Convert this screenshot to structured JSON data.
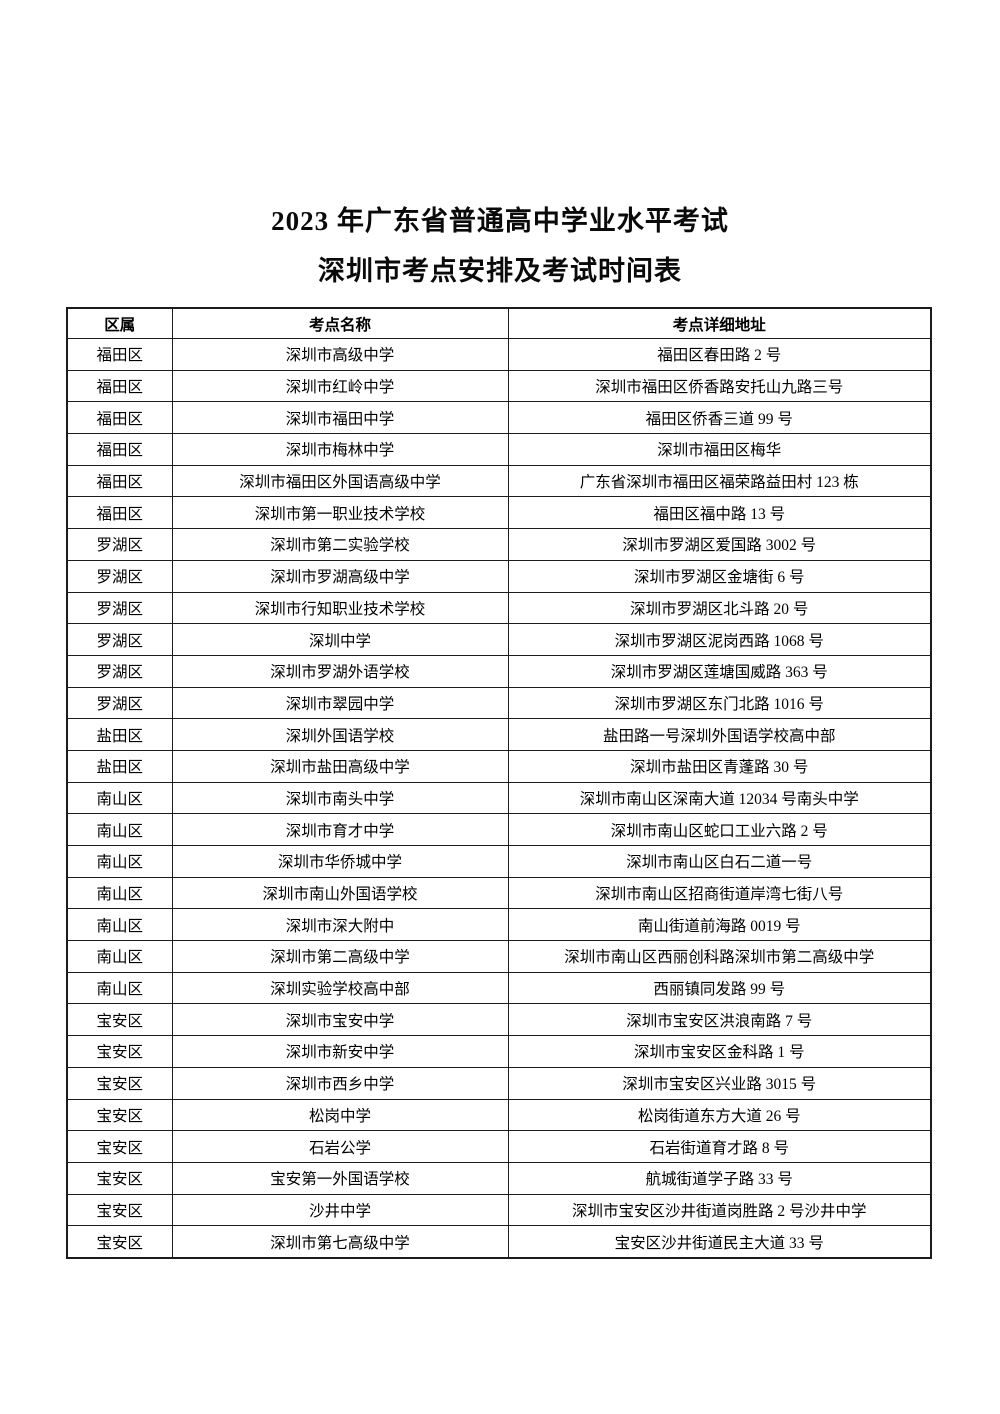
{
  "page": {
    "title_line1": "2023 年广东省普通高中学业水平考试",
    "title_line2": "深圳市考点安排及考试时间表"
  },
  "table": {
    "headers": [
      "区属",
      "考点名称",
      "考点详细地址"
    ],
    "rows": [
      [
        "福田区",
        "深圳市高级中学",
        "福田区春田路 2 号"
      ],
      [
        "福田区",
        "深圳市红岭中学",
        "深圳市福田区侨香路安托山九路三号"
      ],
      [
        "福田区",
        "深圳市福田中学",
        "福田区侨香三道 99 号"
      ],
      [
        "福田区",
        "深圳市梅林中学",
        "深圳市福田区梅华"
      ],
      [
        "福田区",
        "深圳市福田区外国语高级中学",
        "广东省深圳市福田区福荣路益田村 123 栋"
      ],
      [
        "福田区",
        "深圳市第一职业技术学校",
        "福田区福中路 13 号"
      ],
      [
        "罗湖区",
        "深圳市第二实验学校",
        "深圳市罗湖区爱国路 3002 号"
      ],
      [
        "罗湖区",
        "深圳市罗湖高级中学",
        "深圳市罗湖区金塘街 6 号"
      ],
      [
        "罗湖区",
        "深圳市行知职业技术学校",
        "深圳市罗湖区北斗路 20 号"
      ],
      [
        "罗湖区",
        "深圳中学",
        "深圳市罗湖区泥岗西路 1068 号"
      ],
      [
        "罗湖区",
        "深圳市罗湖外语学校",
        "深圳市罗湖区莲塘国威路 363 号"
      ],
      [
        "罗湖区",
        "深圳市翠园中学",
        "深圳市罗湖区东门北路 1016 号"
      ],
      [
        "盐田区",
        "深圳外国语学校",
        "盐田路一号深圳外国语学校高中部"
      ],
      [
        "盐田区",
        "深圳市盐田高级中学",
        "深圳市盐田区青蓬路 30 号"
      ],
      [
        "南山区",
        "深圳市南头中学",
        "深圳市南山区深南大道 12034 号南头中学"
      ],
      [
        "南山区",
        "深圳市育才中学",
        "深圳市南山区蛇口工业六路 2 号"
      ],
      [
        "南山区",
        "深圳市华侨城中学",
        "深圳市南山区白石二道一号"
      ],
      [
        "南山区",
        "深圳市南山外国语学校",
        "深圳市南山区招商街道岸湾七街八号"
      ],
      [
        "南山区",
        "深圳市深大附中",
        "南山街道前海路 0019 号"
      ],
      [
        "南山区",
        "深圳市第二高级中学",
        "深圳市南山区西丽创科路深圳市第二高级中学"
      ],
      [
        "南山区",
        "深圳实验学校高中部",
        "西丽镇同发路 99 号"
      ],
      [
        "宝安区",
        "深圳市宝安中学",
        "深圳市宝安区洪浪南路 7 号"
      ],
      [
        "宝安区",
        "深圳市新安中学",
        "深圳市宝安区金科路 1 号"
      ],
      [
        "宝安区",
        "深圳市西乡中学",
        "深圳市宝安区兴业路 3015 号"
      ],
      [
        "宝安区",
        "松岗中学",
        "松岗街道东方大道 26 号"
      ],
      [
        "宝安区",
        "石岩公学",
        "石岩街道育才路 8 号"
      ],
      [
        "宝安区",
        "宝安第一外国语学校",
        "航城街道学子路 33 号"
      ],
      [
        "宝安区",
        "沙井中学",
        "深圳市宝安区沙井街道岗胜路 2 号沙井中学"
      ],
      [
        "宝安区",
        "深圳市第七高级中学",
        "宝安区沙井街道民主大道 33 号"
      ]
    ]
  }
}
